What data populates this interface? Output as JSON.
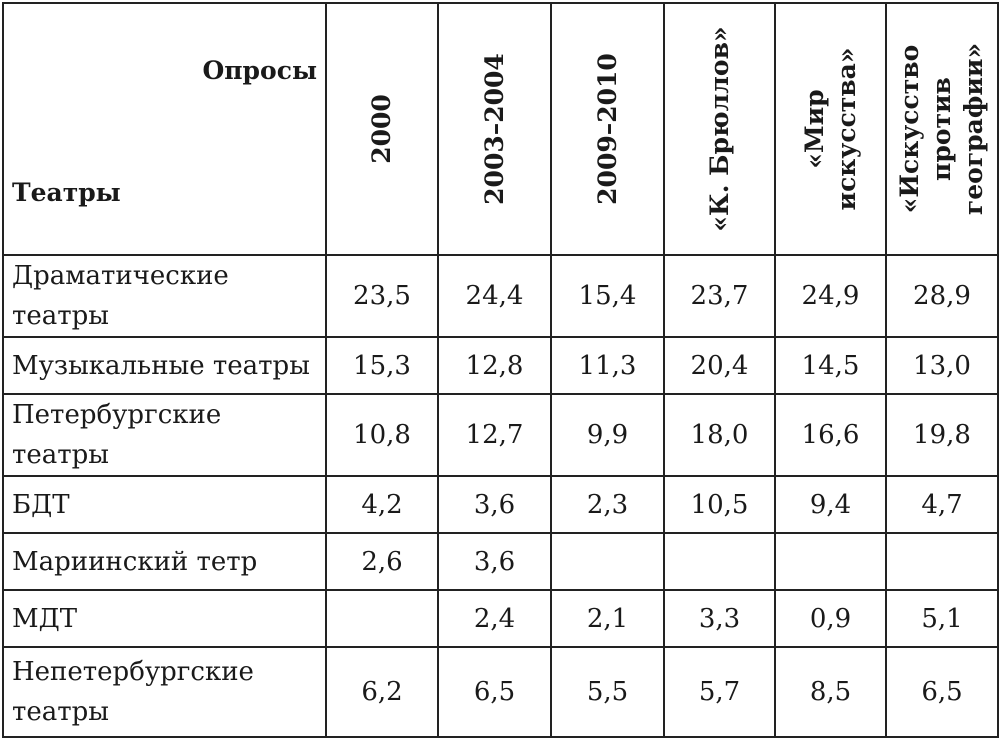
{
  "table": {
    "corner": {
      "top_label": "Опросы",
      "side_label": "Театры"
    },
    "columns": [
      {
        "lines": [
          "2000"
        ]
      },
      {
        "lines": [
          "2003–2004"
        ]
      },
      {
        "lines": [
          "2009–2010"
        ]
      },
      {
        "lines": [
          "«К. Брюллов»"
        ]
      },
      {
        "lines": [
          "«Мир",
          "искусства»"
        ]
      },
      {
        "lines": [
          "«Искусство",
          "против",
          "географии»"
        ]
      }
    ],
    "rows": [
      {
        "label": "Драматические театры",
        "values": [
          "23,5",
          "24,4",
          "15,4",
          "23,7",
          "24,9",
          "28,9"
        ]
      },
      {
        "label": "Музыкальные театры",
        "values": [
          "15,3",
          "12,8",
          "11,3",
          "20,4",
          "14,5",
          "13,0"
        ]
      },
      {
        "label": "Петербургские театры",
        "values": [
          "10,8",
          "12,7",
          "9,9",
          "18,0",
          "16,6",
          "19,8"
        ]
      },
      {
        "label": "БДТ",
        "values": [
          "4,2",
          "3,6",
          "2,3",
          "10,5",
          "9,4",
          "4,7"
        ]
      },
      {
        "label": "Мариинский тетр",
        "values": [
          "2,6",
          "3,6",
          "",
          "",
          "",
          ""
        ]
      },
      {
        "label": "МДТ",
        "values": [
          "",
          "2,4",
          "2,1",
          "3,3",
          "0,9",
          "5,1"
        ]
      },
      {
        "label": "Непетербургские театры",
        "values": [
          "6,2",
          "6,5",
          "5,5",
          "5,7",
          "8,5",
          "6,5"
        ]
      }
    ]
  }
}
